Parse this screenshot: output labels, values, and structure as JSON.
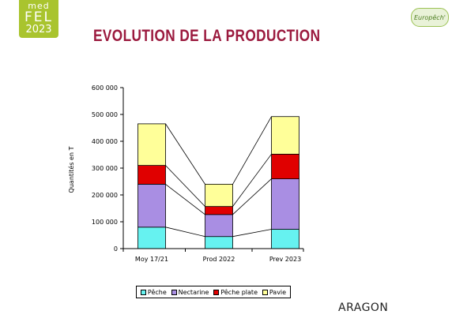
{
  "logo": {
    "line1": "med",
    "line2": "FEL",
    "line3": "2023"
  },
  "brand": "Europêch'",
  "title": "EVOLUTION DE LA PRODUCTION",
  "region": "ARAGON",
  "colors": {
    "peche": "#66f2f0",
    "nectarine": "#a98ee3",
    "peche_plate": "#e00000",
    "pavie": "#ffff99",
    "title": "#9b1a3e"
  },
  "chart_data": {
    "type": "bar",
    "stacked": true,
    "categories": [
      "Moy 17/21",
      "Prod 2022",
      "Prev 2023"
    ],
    "series": [
      {
        "name": "Pêche",
        "color": "#66f2f0",
        "values": [
          80000,
          45000,
          72000
        ]
      },
      {
        "name": "Nectarine",
        "color": "#a98ee3",
        "values": [
          160000,
          82000,
          188000
        ]
      },
      {
        "name": "Pêche plate",
        "color": "#e00000",
        "values": [
          70000,
          30000,
          92000
        ]
      },
      {
        "name": "Pavie",
        "color": "#ffff99",
        "values": [
          155000,
          83000,
          140000
        ]
      }
    ],
    "ylabel": "Quantités en T",
    "ylim": [
      0,
      600000
    ],
    "yticks": [
      "0",
      "100 000",
      "200 000",
      "300 000",
      "400 000",
      "500 000",
      "600 000"
    ],
    "ytick_values": [
      0,
      100000,
      200000,
      300000,
      400000,
      500000,
      600000
    ],
    "grid": false,
    "legend_position": "bottom"
  }
}
